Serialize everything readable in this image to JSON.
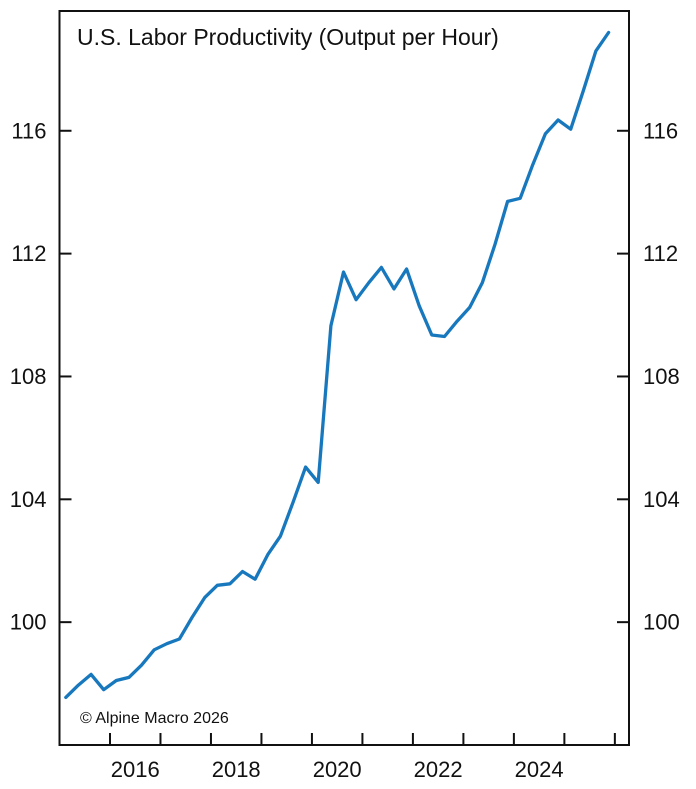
{
  "chart_data": {
    "type": "line",
    "title": "U.S. Labor Productivity (Output per Hour)",
    "source_note": "© Alpine Macro 2026",
    "line_color": "#1878be",
    "axis_color": "#111111",
    "x_axis": {
      "unit": "year (quarterly series)",
      "range": [
        2015.0,
        2026.28
      ],
      "tick_years": [
        2016,
        2017,
        2018,
        2019,
        2020,
        2021,
        2022,
        2023,
        2024,
        2025,
        2026
      ],
      "label_years": [
        "2016",
        "2018",
        "2020",
        "2022",
        "2024"
      ],
      "labels_centered_between_ticks": true
    },
    "y_axis": {
      "range": [
        96.0,
        119.9
      ],
      "ticks": [
        100,
        104,
        108,
        112,
        116
      ],
      "sides": "both",
      "grid": false
    },
    "legend": "none",
    "series": [
      {
        "name": "U.S. Labor Productivity (Output per Hour)",
        "quarters": [
          "2015 Q1",
          "2015 Q2",
          "2015 Q3",
          "2015 Q4",
          "2016 Q1",
          "2016 Q2",
          "2016 Q3",
          "2016 Q4",
          "2017 Q1",
          "2017 Q2",
          "2017 Q3",
          "2017 Q4",
          "2018 Q1",
          "2018 Q2",
          "2018 Q3",
          "2018 Q4",
          "2019 Q1",
          "2019 Q2",
          "2019 Q3",
          "2019 Q4",
          "2020 Q1",
          "2020 Q2",
          "2020 Q3",
          "2020 Q4",
          "2021 Q1",
          "2021 Q2",
          "2021 Q3",
          "2021 Q4",
          "2022 Q1",
          "2022 Q2",
          "2022 Q3",
          "2022 Q4",
          "2023 Q1",
          "2023 Q2",
          "2023 Q3",
          "2023 Q4",
          "2024 Q1",
          "2024 Q2",
          "2024 Q3",
          "2024 Q4",
          "2025 Q1",
          "2025 Q2",
          "2025 Q3",
          "2025 Q4"
        ],
        "values": [
          97.55,
          97.95,
          98.3,
          97.8,
          98.1,
          98.2,
          98.6,
          99.1,
          99.3,
          99.45,
          100.15,
          100.8,
          101.2,
          101.25,
          101.65,
          101.4,
          102.2,
          102.8,
          103.9,
          105.05,
          104.55,
          109.65,
          111.4,
          110.5,
          111.05,
          111.55,
          110.85,
          111.5,
          110.3,
          109.35,
          109.3,
          109.8,
          110.25,
          111.05,
          112.3,
          113.7,
          113.8,
          114.9,
          115.9,
          116.35,
          116.05,
          117.3,
          118.6,
          119.2
        ]
      }
    ]
  }
}
